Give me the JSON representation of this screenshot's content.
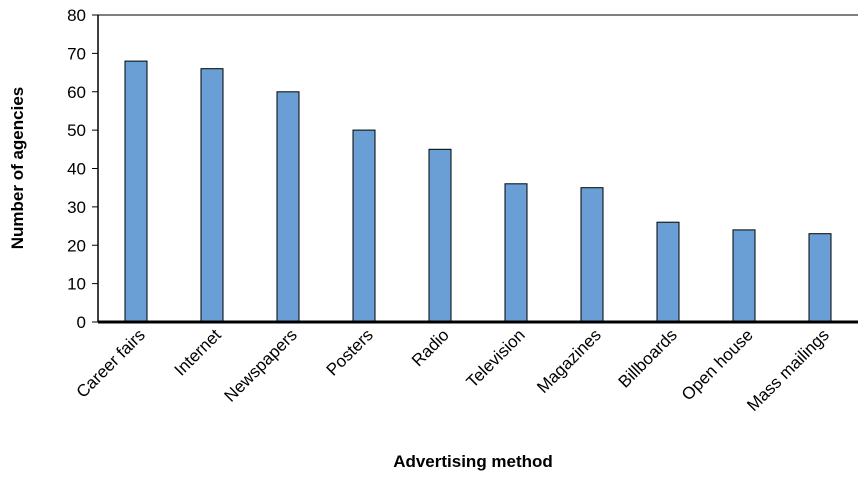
{
  "chart_data": {
    "type": "bar",
    "title": "",
    "xlabel": "Advertising method",
    "ylabel": "Number of agencies",
    "categories": [
      "Career fairs",
      "Internet",
      "Newspapers",
      "Posters",
      "Radio",
      "Television",
      "Magazines",
      "Billboards",
      "Open house",
      "Mass mailings"
    ],
    "values": [
      68,
      66,
      60,
      50,
      45,
      36,
      35,
      26,
      24,
      23
    ],
    "ylim": [
      0,
      80
    ],
    "yticks": [
      0,
      10,
      20,
      30,
      40,
      50,
      60,
      70,
      80
    ],
    "grid": false,
    "legend": "none",
    "colors": {
      "bar_fill": "#6a9fd6",
      "bar_stroke": "#000000",
      "axis": "#000000"
    }
  }
}
